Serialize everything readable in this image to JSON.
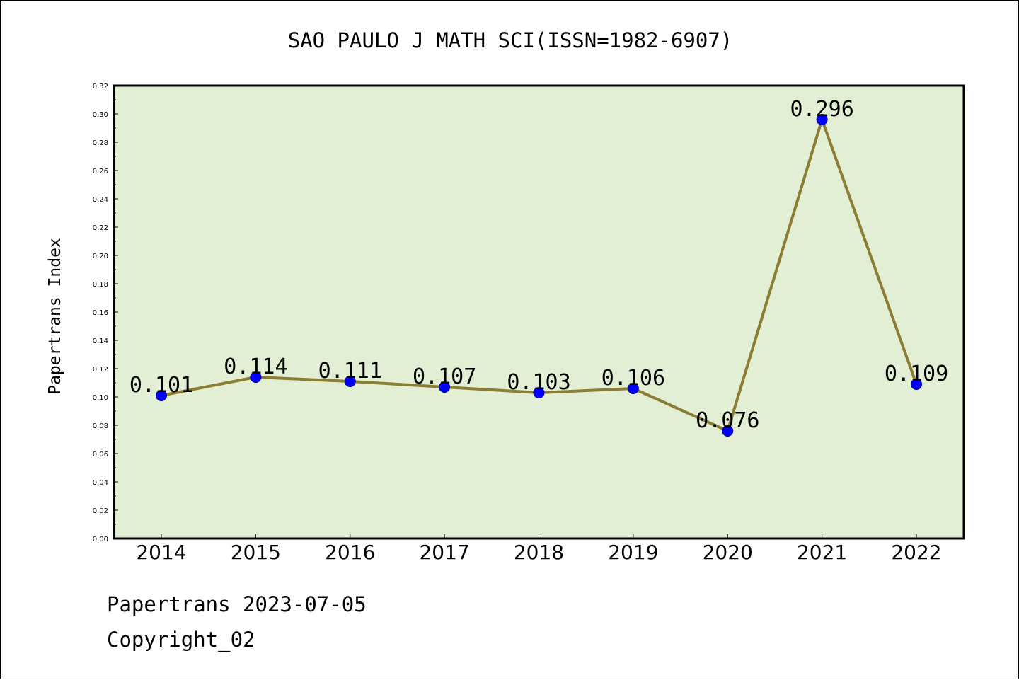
{
  "chart_data": {
    "type": "line",
    "title": "SAO PAULO J MATH SCI(ISSN=1982-6907)",
    "xlabel": "",
    "ylabel": "Papertrans Index",
    "categories": [
      "2014",
      "2015",
      "2016",
      "2017",
      "2018",
      "2019",
      "2020",
      "2021",
      "2022"
    ],
    "values": [
      0.101,
      0.114,
      0.111,
      0.107,
      0.103,
      0.106,
      0.076,
      0.296,
      0.109
    ],
    "data_labels": [
      "0.101",
      "0.114",
      "0.111",
      "0.107",
      "0.103",
      "0.106",
      "0.076",
      "0.296",
      "0.109"
    ],
    "ylim": [
      0,
      0.32
    ],
    "yticks": [
      "0.00",
      "0.02",
      "0.04",
      "0.06",
      "0.08",
      "0.10",
      "0.12",
      "0.14",
      "0.16",
      "0.18",
      "0.20",
      "0.22",
      "0.24",
      "0.26",
      "0.28",
      "0.30",
      "0.32"
    ],
    "grid": false,
    "legend": "none",
    "colors": {
      "plot_background": "#e2efd5",
      "line": "#8c7d35",
      "marker_fill": "#0000ff",
      "marker_edge": "#000080"
    }
  },
  "footer": {
    "line1": "Papertrans 2023-07-05",
    "line2": "Copyright_02"
  }
}
